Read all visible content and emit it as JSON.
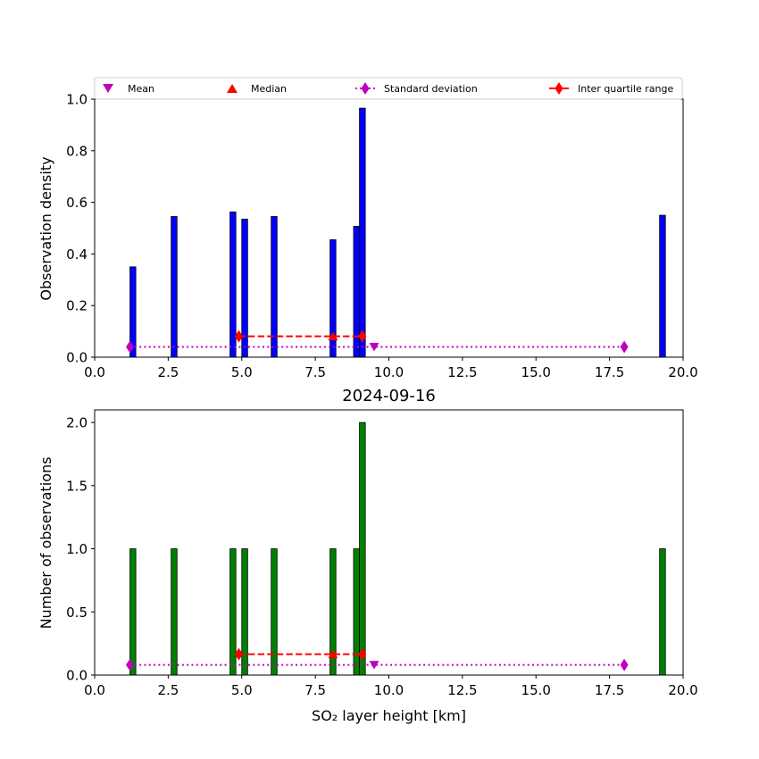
{
  "chart_data": [
    {
      "type": "bar",
      "title": "",
      "xlabel": "",
      "ylabel": "Observation density",
      "xlim": [
        0,
        20
      ],
      "ylim": [
        0,
        1.0
      ],
      "xticks": [
        0.0,
        2.5,
        5.0,
        7.5,
        10.0,
        12.5,
        15.0,
        17.5,
        20.0
      ],
      "xtick_labels": [
        "0.0",
        "2.5",
        "5.0",
        "7.5",
        "10.0",
        "12.5",
        "15.0",
        "17.5",
        "20.0"
      ],
      "yticks": [
        0.0,
        0.2,
        0.4,
        0.6,
        0.8,
        1.0
      ],
      "ytick_labels": [
        "0.0",
        "0.2",
        "0.4",
        "0.6",
        "0.8",
        "1.0"
      ],
      "bar_color": "#0000ff",
      "bar_edge": "#000000",
      "bars": [
        {
          "x0": 1.2,
          "x1": 1.4,
          "value": 0.35
        },
        {
          "x0": 2.6,
          "x1": 2.8,
          "value": 0.545
        },
        {
          "x0": 4.6,
          "x1": 4.8,
          "value": 0.563
        },
        {
          "x0": 5.0,
          "x1": 5.2,
          "value": 0.535
        },
        {
          "x0": 6.0,
          "x1": 6.2,
          "value": 0.545
        },
        {
          "x0": 8.0,
          "x1": 8.2,
          "value": 0.455
        },
        {
          "x0": 8.8,
          "x1": 9.0,
          "value": 0.507
        },
        {
          "x0": 9.0,
          "x1": 9.2,
          "value": 0.965
        },
        {
          "x0": 19.2,
          "x1": 19.4,
          "value": 0.55
        }
      ],
      "mean": {
        "x": 9.5,
        "y": 0.04
      },
      "median": {
        "x": 8.1,
        "y": 0.081
      },
      "std_range": {
        "x0": 1.2,
        "x1": 18.0,
        "y": 0.04
      },
      "iqr_range": {
        "x0": 4.9,
        "x1": 9.1,
        "y": 0.081
      },
      "legend": {
        "placement": "top",
        "entries": [
          "Mean",
          "Median",
          "Standard deviation",
          "Inter quartile range"
        ]
      }
    },
    {
      "type": "bar",
      "title": "2024-09-16",
      "xlabel": "SO₂ layer height [km]",
      "ylabel": "Number of observations",
      "xlim": [
        0,
        20
      ],
      "ylim": [
        0,
        2.1
      ],
      "xticks": [
        0.0,
        2.5,
        5.0,
        7.5,
        10.0,
        12.5,
        15.0,
        17.5,
        20.0
      ],
      "xtick_labels": [
        "0.0",
        "2.5",
        "5.0",
        "7.5",
        "10.0",
        "12.5",
        "15.0",
        "17.5",
        "20.0"
      ],
      "yticks": [
        0.0,
        0.5,
        1.0,
        1.5,
        2.0
      ],
      "ytick_labels": [
        "0.0",
        "0.5",
        "1.0",
        "1.5",
        "2.0"
      ],
      "bar_color": "#008000",
      "bar_edge": "#000000",
      "bars": [
        {
          "x0": 1.2,
          "x1": 1.4,
          "value": 1
        },
        {
          "x0": 2.6,
          "x1": 2.8,
          "value": 1
        },
        {
          "x0": 4.6,
          "x1": 4.8,
          "value": 1
        },
        {
          "x0": 5.0,
          "x1": 5.2,
          "value": 1
        },
        {
          "x0": 6.0,
          "x1": 6.2,
          "value": 1
        },
        {
          "x0": 8.0,
          "x1": 8.2,
          "value": 1
        },
        {
          "x0": 8.8,
          "x1": 9.0,
          "value": 1
        },
        {
          "x0": 9.0,
          "x1": 9.2,
          "value": 2
        },
        {
          "x0": 19.2,
          "x1": 19.4,
          "value": 1
        }
      ],
      "mean": {
        "x": 9.5,
        "y": 0.08
      },
      "median": {
        "x": 8.1,
        "y": 0.165
      },
      "std_range": {
        "x0": 1.2,
        "x1": 18.0,
        "y": 0.08
      },
      "iqr_range": {
        "x0": 4.9,
        "x1": 9.1,
        "y": 0.165
      }
    }
  ],
  "colors": {
    "mean": "#bf00bf",
    "std": "#bf00bf",
    "median": "#ff0000",
    "iqr": "#ff0000"
  }
}
